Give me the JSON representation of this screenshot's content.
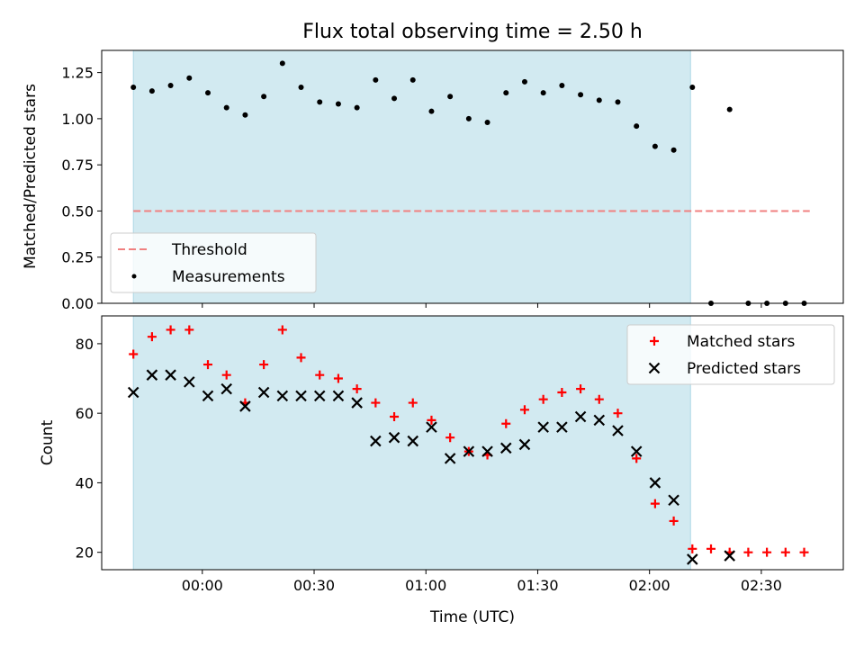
{
  "title": "Flux total observing time = 2.50 h",
  "xlabel": "Time (UTC)",
  "colors": {
    "shade": "#ADD8E6",
    "threshold": "#F08080",
    "matched": "#FF0000",
    "predicted": "#000000",
    "measurement": "#000000"
  },
  "chart_data": [
    {
      "type": "scatter",
      "panel": "top",
      "ylabel": "Matched/Predicted stars",
      "ylim": [
        0,
        1.37
      ],
      "yticks": [
        0.0,
        0.25,
        0.5,
        0.75,
        1.0,
        1.25
      ],
      "ytick_labels": [
        "0.00",
        "0.25",
        "0.50",
        "0.75",
        "1.00",
        "1.25"
      ],
      "xlim_minutes": [
        -27,
        172
      ],
      "xticks_minutes": [
        0,
        30,
        60,
        90,
        120,
        150
      ],
      "observing_window_minutes": [
        -18.5,
        131
      ],
      "threshold": {
        "name": "Threshold",
        "value": 0.5,
        "from_minutes": -18.5,
        "to_minutes": 163
      },
      "series": [
        {
          "name": "Measurements",
          "x_minutes": [
            -18.5,
            -13.5,
            -8.5,
            -3.5,
            1.5,
            6.5,
            11.5,
            16.5,
            21.5,
            26.5,
            31.5,
            36.5,
            41.5,
            46.5,
            51.5,
            56.5,
            61.5,
            66.5,
            71.5,
            76.5,
            81.5,
            86.5,
            91.5,
            96.5,
            101.5,
            106.5,
            111.5,
            116.5,
            121.5,
            126.5,
            131.5,
            136.5,
            141.5,
            146.5,
            151.5,
            156.5,
            161.5
          ],
          "values": [
            1.17,
            1.15,
            1.18,
            1.22,
            1.14,
            1.06,
            1.02,
            1.12,
            1.3,
            1.17,
            1.09,
            1.08,
            1.06,
            1.21,
            1.11,
            1.21,
            1.04,
            1.12,
            1.0,
            0.98,
            1.14,
            1.2,
            1.14,
            1.18,
            1.13,
            1.1,
            1.09,
            0.96,
            0.85,
            0.83,
            1.17,
            0.0,
            1.05,
            0.0,
            0.0,
            0.0,
            0.0
          ]
        }
      ],
      "legend": {
        "placement": "lower-left",
        "entries": [
          "Threshold",
          "Measurements"
        ]
      }
    },
    {
      "type": "scatter",
      "panel": "bottom",
      "ylabel": "Count",
      "ylim": [
        15,
        88
      ],
      "yticks": [
        20,
        40,
        60,
        80
      ],
      "ytick_labels": [
        "20",
        "40",
        "60",
        "80"
      ],
      "xlim_minutes": [
        -27,
        172
      ],
      "xticks_minutes": [
        0,
        30,
        60,
        90,
        120,
        150
      ],
      "xtick_labels": [
        "00:00",
        "00:30",
        "01:00",
        "01:30",
        "02:00",
        "02:30"
      ],
      "observing_window_minutes": [
        -18.5,
        131
      ],
      "series": [
        {
          "name": "Matched stars",
          "marker": "plus",
          "x_minutes": [
            -18.5,
            -13.5,
            -8.5,
            -3.5,
            1.5,
            6.5,
            11.5,
            16.5,
            21.5,
            26.5,
            31.5,
            36.5,
            41.5,
            46.5,
            51.5,
            56.5,
            61.5,
            66.5,
            71.5,
            76.5,
            81.5,
            86.5,
            91.5,
            96.5,
            101.5,
            106.5,
            111.5,
            116.5,
            121.5,
            126.5,
            131.5,
            136.5,
            141.5,
            146.5,
            151.5,
            156.5,
            161.5
          ],
          "values": [
            77,
            82,
            84,
            84,
            74,
            71,
            63,
            74,
            84,
            76,
            71,
            70,
            67,
            63,
            59,
            63,
            58,
            53,
            49,
            48,
            57,
            61,
            64,
            66,
            67,
            64,
            60,
            47,
            34,
            29,
            21,
            21,
            20,
            20,
            20,
            20,
            20
          ]
        },
        {
          "name": "Predicted stars",
          "marker": "x",
          "x_minutes": [
            -18.5,
            -13.5,
            -8.5,
            -3.5,
            1.5,
            6.5,
            11.5,
            16.5,
            21.5,
            26.5,
            31.5,
            36.5,
            41.5,
            46.5,
            51.5,
            56.5,
            61.5,
            66.5,
            71.5,
            76.5,
            81.5,
            86.5,
            91.5,
            96.5,
            101.5,
            106.5,
            111.5,
            116.5,
            121.5,
            126.5,
            131.5,
            141.5
          ],
          "values": [
            66,
            71,
            71,
            69,
            65,
            67,
            62,
            66,
            65,
            65,
            65,
            65,
            63,
            52,
            53,
            52,
            56,
            47,
            49,
            49,
            50,
            51,
            56,
            56,
            59,
            58,
            55,
            49,
            40,
            35,
            18,
            19
          ]
        }
      ],
      "legend": {
        "placement": "upper-right",
        "entries": [
          "Matched stars",
          "Predicted stars"
        ]
      }
    }
  ]
}
